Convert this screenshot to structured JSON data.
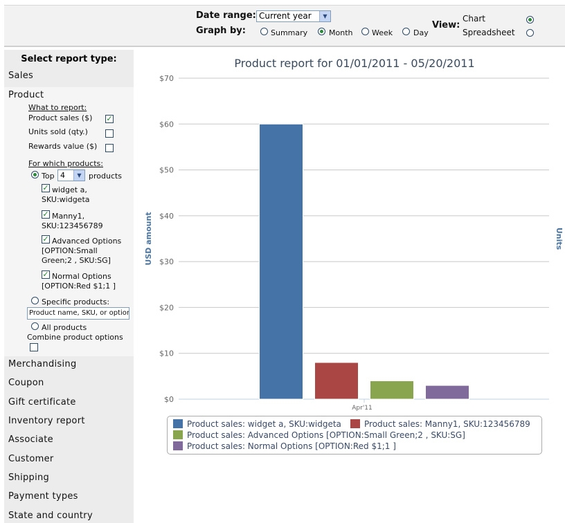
{
  "toolbar": {
    "date_range_label": "Date range:",
    "date_range_value": "Current year",
    "graph_by_label": "Graph by:",
    "graph_by_options": [
      "Summary",
      "Month",
      "Week",
      "Day"
    ],
    "graph_by_selected": "Month",
    "view_label": "View:",
    "view_options": [
      "Chart",
      "Spreadsheet"
    ],
    "view_selected": "Chart"
  },
  "sidebar": {
    "heading": "Select report type:",
    "items_top": [
      "Sales",
      "Product"
    ],
    "what_to_report_label": "What to report:",
    "metrics": [
      {
        "label": "Product sales ($)",
        "checked": true
      },
      {
        "label": "Units sold (qty.)",
        "checked": false
      },
      {
        "label": "Rewards value ($)",
        "checked": false
      }
    ],
    "for_which_label": "For which products:",
    "top_label": "Top",
    "top_value": "4",
    "top_suffix": "products",
    "products": [
      {
        "line1": "widget a,",
        "line2": "SKU:widgeta",
        "line3": ""
      },
      {
        "line1": "Manny1,",
        "line2": "SKU:123456789",
        "line3": ""
      },
      {
        "line1": "Advanced Options",
        "line2": "[OPTION:Small",
        "line3": "Green;2 , SKU:SG]"
      },
      {
        "line1": "Normal Options",
        "line2": "[OPTION:Red $1;1 ]",
        "line3": ""
      }
    ],
    "specific_label": "Specific products:",
    "specific_placeholder": "Product name, SKU, or option",
    "all_label": "All products",
    "combine_label": "Combine product options",
    "items_bottom": [
      "Merchandising",
      "Coupon",
      "Gift certificate",
      "Inventory report",
      "Associate",
      "Customer",
      "Shipping",
      "Payment types",
      "State and country"
    ]
  },
  "chart_data": {
    "type": "bar",
    "title": "Product report for 01/01/2011 - 05/20/2011",
    "ylabel": "USD amount",
    "y2label": "Units",
    "categories": [
      "Apr'11"
    ],
    "ylim": [
      0,
      70
    ],
    "yticks": [
      "$0",
      "$10",
      "$20",
      "$30",
      "$40",
      "$50",
      "$60",
      "$70"
    ],
    "series": [
      {
        "name": "Product sales: widget a, SKU:widgeta",
        "values": [
          60
        ],
        "color": "#4572a7"
      },
      {
        "name": "Product sales: Manny1, SKU:123456789",
        "values": [
          8
        ],
        "color": "#aa4643"
      },
      {
        "name": "Product sales: Advanced Options [OPTION:Small Green;2 , SKU:SG]",
        "values": [
          4
        ],
        "color": "#89a54e"
      },
      {
        "name": "Product sales: Normal Options [OPTION:Red $1;1 ]",
        "values": [
          3
        ],
        "color": "#80699b"
      }
    ],
    "grid": true,
    "legend_position": "bottom"
  }
}
